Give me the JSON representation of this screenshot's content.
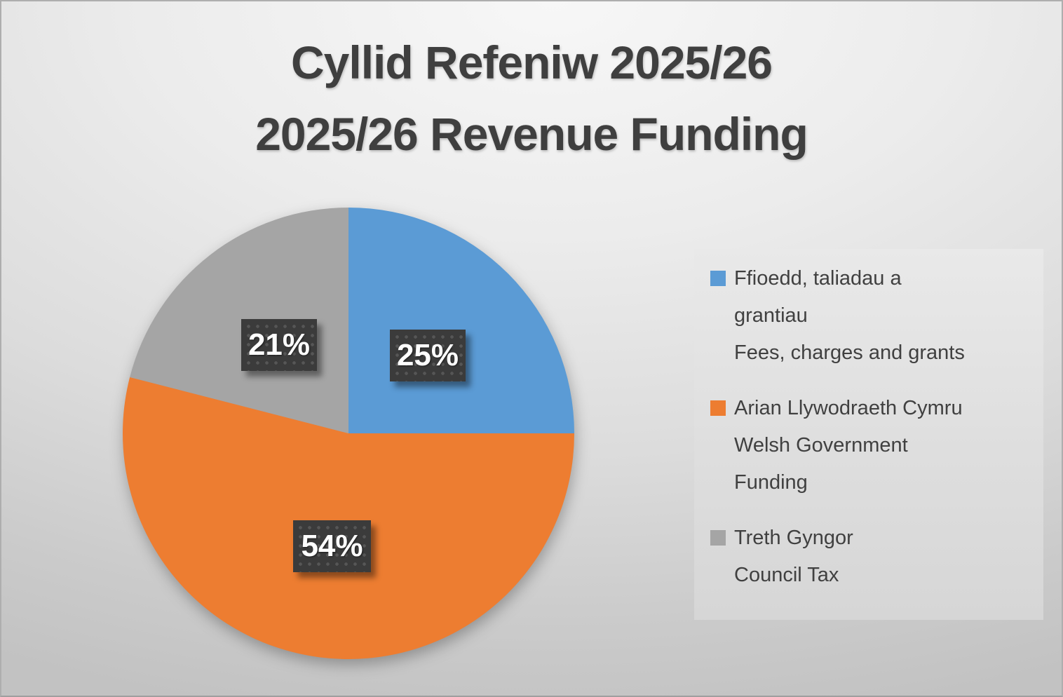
{
  "title": {
    "line1": "Cyllid Refeniw 2025/26",
    "line2": "2025/26 Revenue Funding"
  },
  "chart_data": {
    "type": "pie",
    "title": "Cyllid Refeniw 2025/26 — 2025/26 Revenue Funding",
    "start_angle": "top",
    "direction": "clockwise",
    "legend_position": "right",
    "units": "percent",
    "slices": [
      {
        "label_cy": "Ffioedd, taliadau a grantiau",
        "label_en": "Fees, charges and grants",
        "value": 25,
        "data_label": "25%",
        "color": "#5B9BD5"
      },
      {
        "label_cy": "Arian Llywodraeth Cymru",
        "label_en": "Welsh Government Funding",
        "value": 54,
        "data_label": "54%",
        "color": "#ED7D31"
      },
      {
        "label_cy": "Treth Gyngor",
        "label_en": "Council Tax",
        "value": 21,
        "data_label": "21%",
        "color": "#A5A5A5"
      }
    ]
  },
  "legend": {
    "items": [
      {
        "lines": [
          "Ffioedd, taliadau a",
          "grantiau",
          "Fees, charges and grants"
        ]
      },
      {
        "lines": [
          "Arian Llywodraeth Cymru",
          "Welsh Government",
          "Funding"
        ]
      },
      {
        "lines": [
          "Treth Gyngor",
          "Council Tax"
        ]
      }
    ]
  },
  "colors": {
    "title_text": "#3F3F3F",
    "legend_text": "#404040",
    "data_label_box": "#3B3B3B",
    "data_label_text": "#FFFFFF"
  }
}
